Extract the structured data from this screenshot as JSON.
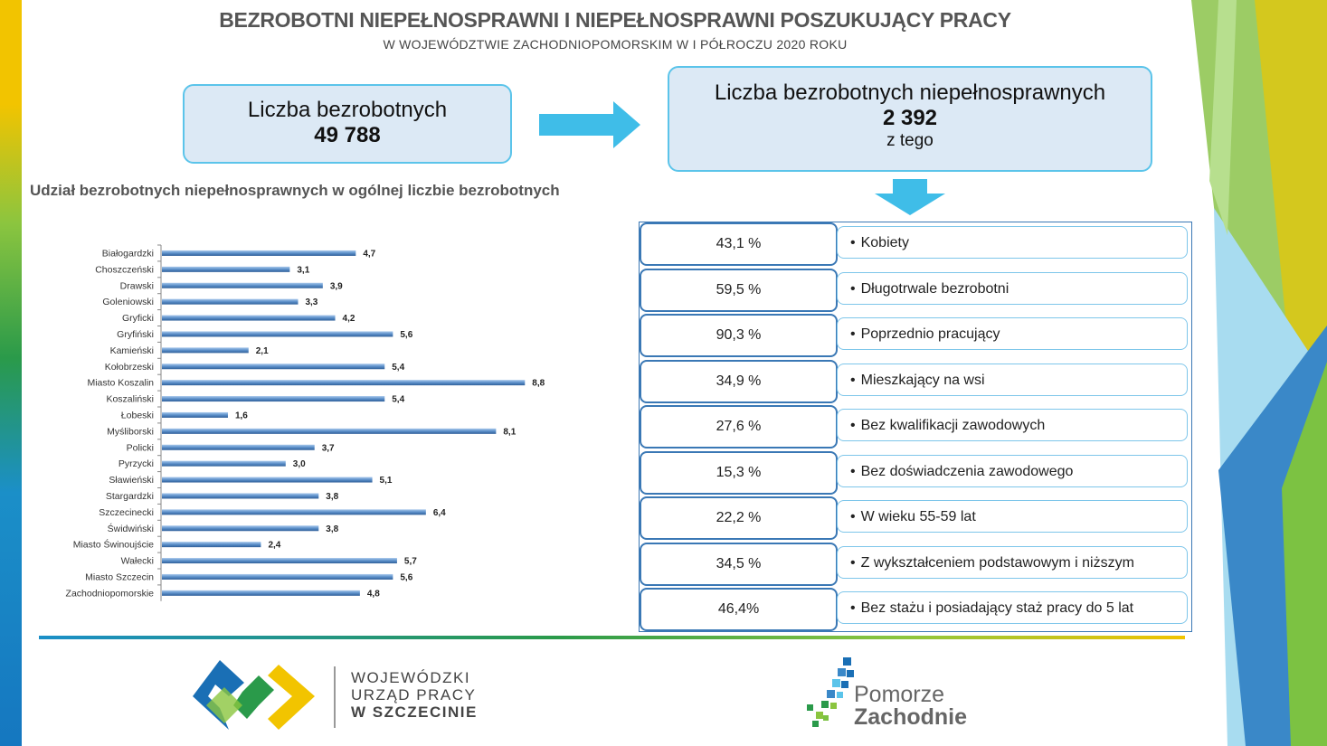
{
  "header": {
    "title": "BEZROBOTNI NIEPEŁNOSPRAWNI I NIEPEŁNOSPRAWNI POSZUKUJĄCY PRACY",
    "subtitle": "W WOJEWÓDZTWIE ZACHODNIOPOMORSKIM  W I PÓŁROCZU 2020 ROKU"
  },
  "box_total": {
    "label": "Liczba bezrobotnych",
    "value": "49 788"
  },
  "box_disabled": {
    "label": "Liczba bezrobotnych niepełnosprawnych",
    "value": "2 392",
    "sub": "z tego"
  },
  "chart_title": "Udział bezrobotnych niepełnosprawnych  w ogólnej liczbie bezrobotnych",
  "chart_data": {
    "type": "bar",
    "orientation": "horizontal",
    "title": "Udział bezrobotnych niepełnosprawnych  w ogólnej liczbie bezrobotnych",
    "categories": [
      "Białogardzki",
      "Choszczeński",
      "Drawski",
      "Goleniowski",
      "Gryficki",
      "Gryfiński",
      "Kamieński",
      "Kołobrzeski",
      "Miasto Koszalin",
      "Koszaliński",
      "Łobeski",
      "Myśliborski",
      "Policki",
      "Pyrzycki",
      "Sławieński",
      "Stargardzki",
      "Szczecinecki",
      "Świdwiński",
      "Miasto Świnoujście",
      "Wałecki",
      "Miasto Szczecin",
      "Zachodniopomorskie"
    ],
    "values": [
      4.7,
      3.1,
      3.9,
      3.3,
      4.2,
      5.6,
      2.1,
      5.4,
      8.8,
      5.4,
      1.6,
      8.1,
      3.7,
      3.0,
      5.1,
      3.8,
      6.4,
      3.8,
      2.4,
      5.7,
      5.6,
      4.8
    ],
    "value_labels": [
      "4,7",
      "3,1",
      "3,9",
      "3,3",
      "4,2",
      "5,6",
      "2,1",
      "5,4",
      "8,8",
      "5,4",
      "1,6",
      "8,1",
      "3,7",
      "3,0",
      "5,1",
      "3,8",
      "6,4",
      "3,8",
      "2,4",
      "5,7",
      "5,6",
      "4,8"
    ],
    "xlim": [
      0,
      10
    ],
    "grid": false,
    "bar_color": "#5b8fc9"
  },
  "stats": [
    {
      "pct": "43,1  %",
      "label": "Kobiety"
    },
    {
      "pct": "59,5  %",
      "label": "Długotrwale bezrobotni"
    },
    {
      "pct": "90,3  %",
      "label": "Poprzednio pracujący"
    },
    {
      "pct": "34,9  %",
      "label": "Mieszkający na wsi"
    },
    {
      "pct": "27,6  %",
      "label": "Bez kwalifikacji zawodowych"
    },
    {
      "pct": "15,3  %",
      "label": "Bez doświadczenia zawodowego"
    },
    {
      "pct": "22,2  %",
      "label": "W wieku 55-59 lat"
    },
    {
      "pct": "34,5  %",
      "label": "Z wykształceniem podstawowym i niższym"
    },
    {
      "pct": "46,4%",
      "label": "Bez stażu i posiadający staż pracy do 5 lat"
    }
  ],
  "logos": {
    "wup": {
      "line1": "WOJEWÓDZKI",
      "line2": "URZĄD PRACY",
      "line3": "W  SZCZECINIE"
    },
    "pz": {
      "line1": "Pomorze",
      "line2": "Zachodnie"
    }
  },
  "colors": {
    "accent_blue": "#5bc4ea",
    "box_fill": "#dce9f5",
    "table_border": "#3a78b5"
  }
}
